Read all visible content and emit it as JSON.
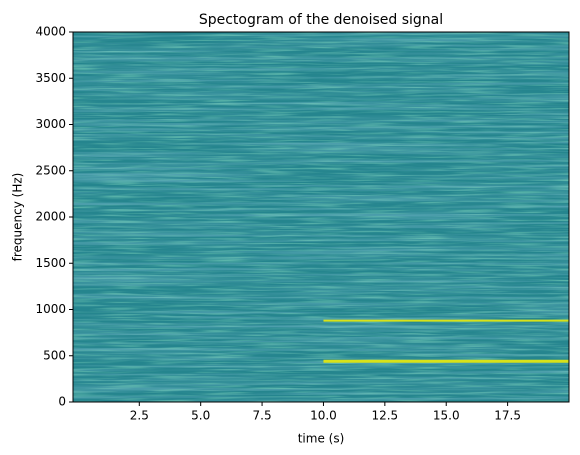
{
  "chart_data": {
    "type": "spectrogram",
    "title": "Spectogram of the denoised signal",
    "xlabel": "time (s)",
    "ylabel": "frequency (Hz)",
    "xlim": [
      -0.2,
      20.0
    ],
    "ylim": [
      0,
      4000
    ],
    "xticks": [
      2.5,
      5.0,
      7.5,
      10.0,
      12.5,
      15.0,
      17.5
    ],
    "yticks": [
      0,
      500,
      1000,
      1500,
      2000,
      2500,
      3000,
      3500,
      4000
    ],
    "background_color": "#25858e",
    "tone_color": "#d8e219",
    "tones": [
      {
        "frequency": 440,
        "start": 10.0,
        "end": 20.0
      },
      {
        "frequency": 880,
        "start": 10.0,
        "end": 20.0
      }
    ]
  }
}
